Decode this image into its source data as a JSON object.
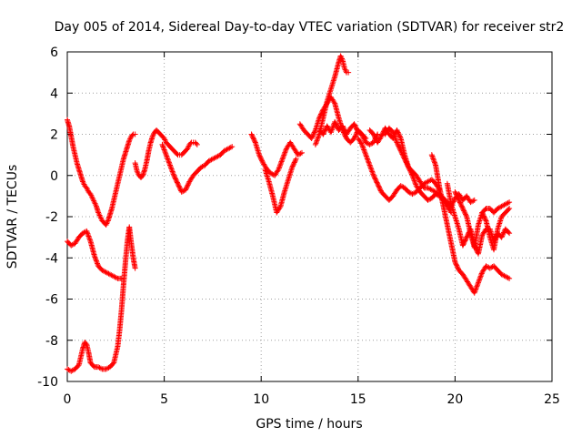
{
  "chart_data": {
    "type": "scatter",
    "title": "Day 005 of 2014, Sidereal Day-to-day VTEC variation (SDTVAR) for receiver str2",
    "xlabel": "GPS time / hours",
    "ylabel": "SDTVAR / TECUs",
    "xlim": [
      0,
      25
    ],
    "ylim": [
      -10,
      6
    ],
    "xticks": [
      "0",
      "5",
      "10",
      "15",
      "20",
      "25"
    ],
    "yticks": [
      "-10",
      "-8",
      "-6",
      "-4",
      "-2",
      "0",
      "2",
      "4",
      "6"
    ],
    "grid": true,
    "legend": "none",
    "marker": "+",
    "color": "#ff0000",
    "series": [
      {
        "x": [
          0,
          0.1,
          0.2,
          0.3,
          0.4,
          0.5,
          0.6,
          0.7,
          0.8,
          0.9,
          1.0,
          1.1,
          1.2,
          1.3,
          1.4,
          1.5,
          1.6,
          1.7,
          1.8,
          1.9,
          2.0,
          2.1,
          2.2,
          2.3,
          2.4,
          2.5,
          2.6,
          2.7,
          2.8,
          2.9,
          3.0,
          3.1,
          3.2,
          3.3,
          3.4,
          3.5
        ],
        "y": [
          2.7,
          2.4,
          1.9,
          1.4,
          1.0,
          0.6,
          0.3,
          0,
          -0.3,
          -0.5,
          -0.6,
          -0.8,
          -0.9,
          -1.1,
          -1.3,
          -1.5,
          -1.8,
          -2.0,
          -2.2,
          -2.3,
          -2.4,
          -2.2,
          -1.9,
          -1.6,
          -1.2,
          -0.8,
          -0.4,
          0,
          0.4,
          0.8,
          1.1,
          1.4,
          1.7,
          1.9,
          2.0,
          2.0
        ]
      },
      {
        "x": [
          3.5,
          3.6,
          3.7,
          3.8,
          3.9,
          4.0,
          4.1,
          4.2,
          4.3,
          4.4,
          4.5,
          4.6,
          4.7,
          4.8,
          4.9,
          5.0,
          5.1,
          5.2,
          5.3,
          5.4,
          5.5,
          5.6,
          5.7,
          5.8,
          5.9,
          6.0,
          6.1,
          6.2,
          6.3,
          6.4,
          6.5,
          6.6,
          6.7
        ],
        "y": [
          0.6,
          0.2,
          0,
          -0.1,
          0,
          0.3,
          0.7,
          1.2,
          1.6,
          1.9,
          2.1,
          2.2,
          2.1,
          2.0,
          1.9,
          1.8,
          1.6,
          1.5,
          1.4,
          1.3,
          1.2,
          1.1,
          1.0,
          1.0,
          1.0,
          1.1,
          1.2,
          1.3,
          1.5,
          1.6,
          1.6,
          1.6,
          1.5
        ]
      },
      {
        "x": [
          4.9,
          5.1,
          5.3,
          5.5,
          5.7,
          5.9,
          6.1,
          6.3,
          6.5,
          6.7,
          6.9,
          7.1,
          7.3,
          7.5,
          7.7,
          7.9,
          8.1,
          8.3,
          8.5
        ],
        "y": [
          1.5,
          1.0,
          0.5,
          0,
          -0.4,
          -0.8,
          -0.7,
          -0.3,
          0,
          0.2,
          0.4,
          0.5,
          0.7,
          0.8,
          0.9,
          1.0,
          1.2,
          1.3,
          1.4
        ]
      },
      {
        "x": [
          0,
          0.2,
          0.4,
          0.6,
          0.8,
          1.0,
          1.2,
          1.4,
          1.6,
          1.8,
          2.0,
          2.2,
          2.4,
          2.6,
          2.8
        ],
        "y": [
          -3.2,
          -3.4,
          -3.3,
          -3.0,
          -2.8,
          -2.7,
          -3.2,
          -3.9,
          -4.4,
          -4.6,
          -4.7,
          -4.8,
          -4.9,
          -5.0,
          -5.0
        ]
      },
      {
        "x": [
          0,
          0.2,
          0.4,
          0.6,
          0.8,
          0.9,
          1.0,
          1.1,
          1.2,
          1.4,
          1.6,
          1.8,
          2.0,
          2.2,
          2.4,
          2.6,
          2.7,
          2.8,
          2.9,
          3.0,
          3.1,
          3.2,
          3.3,
          3.4,
          3.5
        ],
        "y": [
          -9.4,
          -9.5,
          -9.4,
          -9.2,
          -8.4,
          -8.1,
          -8.2,
          -8.6,
          -9.1,
          -9.3,
          -9.3,
          -9.4,
          -9.4,
          -9.3,
          -9.1,
          -8.3,
          -7.5,
          -6.5,
          -5.3,
          -4.2,
          -3.2,
          -2.5,
          -3.3,
          -4.0,
          -4.5
        ]
      },
      {
        "x": [
          9.5,
          9.7,
          9.9,
          10.1,
          10.3,
          10.5,
          10.7,
          10.9,
          11.1,
          11.3,
          11.5,
          11.7,
          11.9,
          12.1
        ],
        "y": [
          2.0,
          1.6,
          1.0,
          0.6,
          0.3,
          0.1,
          0.0,
          0.3,
          0.8,
          1.3,
          1.6,
          1.3,
          1.0,
          1.1
        ]
      },
      {
        "x": [
          10.2,
          10.4,
          10.6,
          10.8,
          11.0,
          11.2,
          11.4,
          11.6,
          11.8
        ],
        "y": [
          0.3,
          -0.3,
          -1.0,
          -1.8,
          -1.5,
          -0.8,
          -0.2,
          0.4,
          0.8
        ]
      },
      {
        "x": [
          12.0,
          12.2,
          12.4,
          12.6,
          12.8,
          13.0,
          13.2,
          13.4,
          13.6,
          13.8,
          14.0,
          14.2,
          14.4,
          14.6,
          14.8,
          15.0,
          15.2,
          15.4,
          15.6,
          15.8,
          16.0
        ],
        "y": [
          2.5,
          2.2,
          2.0,
          1.8,
          2.2,
          2.8,
          3.2,
          3.5,
          3.8,
          3.5,
          2.8,
          2.2,
          1.8,
          1.6,
          1.8,
          2.2,
          2.0,
          1.6,
          1.5,
          1.6,
          2.0
        ]
      },
      {
        "x": [
          12.8,
          13.0,
          13.2,
          13.4,
          13.6,
          13.8,
          14.0,
          14.1,
          14.2,
          14.3,
          14.4,
          14.5
        ],
        "y": [
          1.5,
          2.0,
          2.8,
          3.6,
          4.2,
          4.8,
          5.5,
          5.8,
          5.6,
          5.2,
          5.0,
          5.0
        ]
      },
      {
        "x": [
          13.0,
          13.2,
          13.4,
          13.6,
          13.8,
          14.0,
          14.2,
          14.4,
          14.6,
          14.8,
          15.0,
          15.2,
          15.4
        ],
        "y": [
          2.2,
          2.0,
          2.4,
          2.1,
          2.6,
          2.2,
          2.4,
          2.0,
          2.3,
          2.5,
          2.1,
          2.0,
          1.8
        ]
      },
      {
        "x": [
          15.0,
          15.2,
          15.4,
          15.6,
          15.8,
          16.0,
          16.2,
          16.4,
          16.6,
          16.8,
          17.0,
          17.2,
          17.4,
          17.6,
          17.8,
          18.0,
          18.2,
          18.4,
          18.6,
          18.8,
          19.0,
          19.2
        ],
        "y": [
          1.8,
          1.5,
          1.0,
          0.5,
          0,
          -0.4,
          -0.8,
          -1.0,
          -1.2,
          -1.0,
          -0.7,
          -0.5,
          -0.6,
          -0.8,
          -0.9,
          -0.8,
          -0.6,
          -0.4,
          -0.3,
          -0.2,
          -0.4,
          -0.7
        ]
      },
      {
        "x": [
          15.6,
          15.8,
          16.0,
          16.2,
          16.4,
          16.6,
          16.8,
          17.0,
          17.2,
          17.4,
          17.6,
          17.8,
          18.0,
          18.2,
          18.4,
          18.6,
          18.8,
          19.0,
          19.2,
          19.4,
          19.6,
          19.8
        ],
        "y": [
          2.2,
          2.0,
          1.6,
          1.9,
          2.3,
          2.0,
          1.8,
          2.2,
          1.8,
          1.0,
          0.4,
          0,
          -0.5,
          -0.8,
          -1.0,
          -1.2,
          -1.1,
          -0.9,
          -1.0,
          -1.2,
          -1.5,
          -1.8
        ]
      },
      {
        "x": [
          16.4,
          16.6,
          16.8,
          17.0,
          17.2,
          17.4,
          17.6,
          17.8,
          18.0,
          18.2,
          18.4,
          18.6,
          18.8,
          19.0,
          19.2,
          19.4,
          19.6,
          19.8,
          20.0,
          20.2,
          20.4,
          20.6,
          20.8,
          21.0
        ],
        "y": [
          2.0,
          2.3,
          2.1,
          1.6,
          1.2,
          0.8,
          0.4,
          0.2,
          0,
          -0.3,
          -0.6,
          -0.6,
          -0.7,
          -0.8,
          -0.9,
          -1.1,
          -1.3,
          -1.5,
          -1.1,
          -0.9,
          -1.2,
          -1.0,
          -1.3,
          -1.2
        ]
      },
      {
        "x": [
          18.8,
          19.0,
          19.2,
          19.4,
          19.6,
          19.8,
          20.0,
          20.2,
          20.4,
          20.6,
          20.8,
          21.0,
          21.2,
          21.4,
          21.6,
          21.8,
          22.0,
          22.2,
          22.4,
          22.6,
          22.8
        ],
        "y": [
          1.0,
          0.5,
          -0.6,
          -1.5,
          -2.4,
          -3.3,
          -4.2,
          -4.6,
          -4.8,
          -5.1,
          -5.4,
          -5.7,
          -5.2,
          -4.7,
          -4.4,
          -4.5,
          -4.4,
          -4.6,
          -4.8,
          -4.9,
          -5.0
        ]
      },
      {
        "x": [
          19.6,
          19.8,
          20.0,
          20.2,
          20.4,
          20.6,
          20.8,
          21.0,
          21.2,
          21.4,
          21.6,
          21.8,
          22.0,
          22.2,
          22.4,
          22.6,
          22.8
        ],
        "y": [
          -0.4,
          -1.4,
          -2.0,
          -2.6,
          -3.4,
          -3.0,
          -2.6,
          -3.4,
          -3.8,
          -2.9,
          -2.6,
          -2.6,
          -3.2,
          -2.8,
          -3.0,
          -2.6,
          -2.8
        ]
      },
      {
        "x": [
          20.0,
          20.2,
          20.4,
          20.6,
          20.8,
          21.0,
          21.2,
          21.4,
          21.6,
          21.8,
          22.0,
          22.2,
          22.4,
          22.6,
          22.8
        ],
        "y": [
          -0.8,
          -1.2,
          -1.6,
          -2.0,
          -2.8,
          -3.5,
          -2.4,
          -1.8,
          -1.6,
          -1.6,
          -1.8,
          -1.6,
          -1.5,
          -1.4,
          -1.3
        ]
      },
      {
        "x": [
          21.4,
          21.6,
          21.8,
          22.0,
          22.2,
          22.4,
          22.6,
          22.8
        ],
        "y": [
          -1.8,
          -2.2,
          -3.0,
          -3.6,
          -2.6,
          -2.0,
          -1.8,
          -1.6
        ]
      }
    ]
  }
}
